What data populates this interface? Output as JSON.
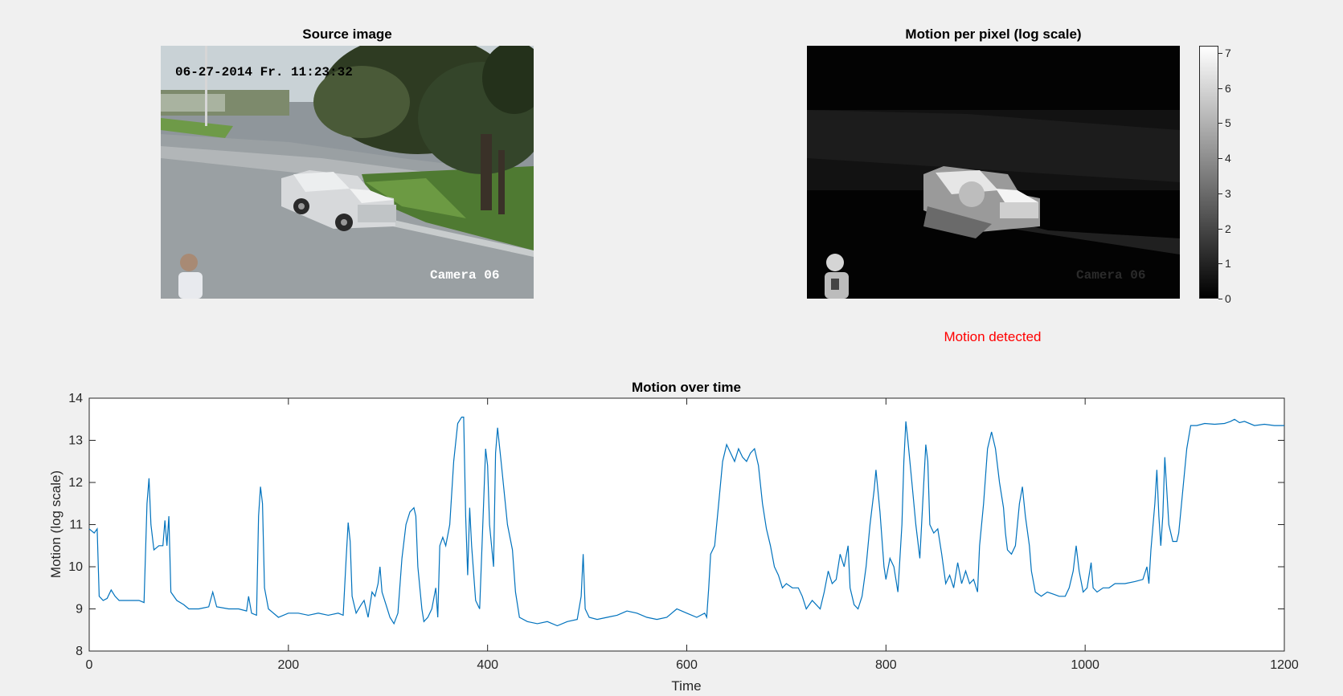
{
  "source_panel": {
    "title": "Source image",
    "timestamp": "06-27-2014 Fr. 11:23:32",
    "camera_label": "Camera 06"
  },
  "motion_panel": {
    "title": "Motion per pixel (log scale)",
    "camera_label": "Camera 06",
    "colorbar_ticks": [
      "0",
      "1",
      "2",
      "3",
      "4",
      "5",
      "6",
      "7"
    ]
  },
  "status_text": "Motion detected",
  "colors": {
    "line": "#0072bd",
    "status": "#ff0000",
    "figure_bg": "#f0f0f0"
  },
  "chart_data": {
    "type": "line",
    "title": "Motion over time",
    "xlabel": "Time",
    "ylabel": "Motion (log scale)",
    "xlim": [
      0,
      1200
    ],
    "ylim": [
      8,
      14
    ],
    "xticks": [
      0,
      200,
      400,
      600,
      800,
      1000,
      1200
    ],
    "yticks": [
      8,
      9,
      10,
      11,
      12,
      13,
      14
    ],
    "series": [
      {
        "name": "motion",
        "points": [
          [
            0,
            10.9
          ],
          [
            5,
            10.8
          ],
          [
            8,
            10.9
          ],
          [
            10,
            9.3
          ],
          [
            14,
            9.2
          ],
          [
            18,
            9.25
          ],
          [
            22,
            9.45
          ],
          [
            26,
            9.3
          ],
          [
            30,
            9.2
          ],
          [
            40,
            9.2
          ],
          [
            50,
            9.2
          ],
          [
            55,
            9.15
          ],
          [
            58,
            11.5
          ],
          [
            60,
            12.1
          ],
          [
            62,
            11.0
          ],
          [
            65,
            10.4
          ],
          [
            70,
            10.5
          ],
          [
            74,
            10.5
          ],
          [
            76,
            11.1
          ],
          [
            78,
            10.5
          ],
          [
            80,
            11.2
          ],
          [
            82,
            9.4
          ],
          [
            88,
            9.2
          ],
          [
            95,
            9.1
          ],
          [
            100,
            9.0
          ],
          [
            110,
            9.0
          ],
          [
            120,
            9.05
          ],
          [
            124,
            9.4
          ],
          [
            128,
            9.05
          ],
          [
            140,
            9.0
          ],
          [
            150,
            9.0
          ],
          [
            158,
            8.95
          ],
          [
            160,
            9.3
          ],
          [
            163,
            8.9
          ],
          [
            168,
            8.85
          ],
          [
            170,
            11.2
          ],
          [
            172,
            11.9
          ],
          [
            174,
            11.5
          ],
          [
            176,
            9.5
          ],
          [
            180,
            9.0
          ],
          [
            190,
            8.8
          ],
          [
            200,
            8.9
          ],
          [
            210,
            8.9
          ],
          [
            220,
            8.85
          ],
          [
            230,
            8.9
          ],
          [
            240,
            8.85
          ],
          [
            250,
            8.9
          ],
          [
            255,
            8.85
          ],
          [
            258,
            10.2
          ],
          [
            260,
            11.05
          ],
          [
            262,
            10.6
          ],
          [
            264,
            9.3
          ],
          [
            268,
            8.9
          ],
          [
            273,
            9.1
          ],
          [
            276,
            9.2
          ],
          [
            280,
            8.8
          ],
          [
            284,
            9.4
          ],
          [
            287,
            9.3
          ],
          [
            290,
            9.6
          ],
          [
            292,
            10.0
          ],
          [
            294,
            9.4
          ],
          [
            298,
            9.1
          ],
          [
            302,
            8.8
          ],
          [
            306,
            8.65
          ],
          [
            310,
            8.9
          ],
          [
            314,
            10.2
          ],
          [
            318,
            11.0
          ],
          [
            322,
            11.3
          ],
          [
            326,
            11.4
          ],
          [
            328,
            11.2
          ],
          [
            330,
            10.0
          ],
          [
            334,
            9.0
          ],
          [
            336,
            8.7
          ],
          [
            340,
            8.8
          ],
          [
            344,
            9.0
          ],
          [
            348,
            9.5
          ],
          [
            350,
            8.8
          ],
          [
            352,
            10.5
          ],
          [
            355,
            10.7
          ],
          [
            358,
            10.5
          ],
          [
            362,
            11.0
          ],
          [
            366,
            12.5
          ],
          [
            370,
            13.4
          ],
          [
            374,
            13.55
          ],
          [
            376,
            13.55
          ],
          [
            378,
            11.2
          ],
          [
            380,
            9.8
          ],
          [
            382,
            11.4
          ],
          [
            384,
            10.5
          ],
          [
            388,
            9.2
          ],
          [
            392,
            9.0
          ],
          [
            396,
            11.5
          ],
          [
            398,
            12.8
          ],
          [
            400,
            12.4
          ],
          [
            402,
            11.0
          ],
          [
            406,
            10.0
          ],
          [
            408,
            12.7
          ],
          [
            410,
            13.3
          ],
          [
            414,
            12.4
          ],
          [
            420,
            11.0
          ],
          [
            425,
            10.4
          ],
          [
            428,
            9.4
          ],
          [
            432,
            8.8
          ],
          [
            440,
            8.7
          ],
          [
            450,
            8.65
          ],
          [
            460,
            8.7
          ],
          [
            470,
            8.6
          ],
          [
            480,
            8.7
          ],
          [
            490,
            8.75
          ],
          [
            494,
            9.3
          ],
          [
            496,
            10.3
          ],
          [
            498,
            9.0
          ],
          [
            502,
            8.8
          ],
          [
            510,
            8.75
          ],
          [
            520,
            8.8
          ],
          [
            530,
            8.85
          ],
          [
            540,
            8.95
          ],
          [
            550,
            8.9
          ],
          [
            560,
            8.8
          ],
          [
            570,
            8.75
          ],
          [
            580,
            8.8
          ],
          [
            590,
            9.0
          ],
          [
            600,
            8.9
          ],
          [
            610,
            8.8
          ],
          [
            618,
            8.9
          ],
          [
            620,
            8.8
          ],
          [
            622,
            9.5
          ],
          [
            624,
            10.3
          ],
          [
            628,
            10.5
          ],
          [
            632,
            11.5
          ],
          [
            636,
            12.5
          ],
          [
            640,
            12.9
          ],
          [
            644,
            12.7
          ],
          [
            648,
            12.5
          ],
          [
            652,
            12.8
          ],
          [
            656,
            12.6
          ],
          [
            660,
            12.5
          ],
          [
            664,
            12.7
          ],
          [
            668,
            12.8
          ],
          [
            672,
            12.4
          ],
          [
            676,
            11.5
          ],
          [
            680,
            10.9
          ],
          [
            684,
            10.5
          ],
          [
            688,
            10.0
          ],
          [
            692,
            9.8
          ],
          [
            696,
            9.5
          ],
          [
            700,
            9.6
          ],
          [
            706,
            9.5
          ],
          [
            712,
            9.5
          ],
          [
            716,
            9.3
          ],
          [
            720,
            9.0
          ],
          [
            726,
            9.2
          ],
          [
            730,
            9.1
          ],
          [
            734,
            9.0
          ],
          [
            738,
            9.4
          ],
          [
            742,
            9.9
          ],
          [
            746,
            9.6
          ],
          [
            750,
            9.7
          ],
          [
            754,
            10.3
          ],
          [
            758,
            10.0
          ],
          [
            762,
            10.5
          ],
          [
            764,
            9.5
          ],
          [
            768,
            9.1
          ],
          [
            772,
            9.0
          ],
          [
            776,
            9.3
          ],
          [
            780,
            10.0
          ],
          [
            784,
            11.0
          ],
          [
            788,
            11.8
          ],
          [
            790,
            12.3
          ],
          [
            794,
            11.3
          ],
          [
            798,
            10.0
          ],
          [
            800,
            9.7
          ],
          [
            804,
            10.2
          ],
          [
            808,
            10.0
          ],
          [
            812,
            9.4
          ],
          [
            816,
            11.0
          ],
          [
            818,
            12.5
          ],
          [
            820,
            13.45
          ],
          [
            822,
            13.0
          ],
          [
            826,
            12.0
          ],
          [
            830,
            11.0
          ],
          [
            834,
            10.2
          ],
          [
            838,
            12.0
          ],
          [
            840,
            12.9
          ],
          [
            842,
            12.5
          ],
          [
            844,
            11.0
          ],
          [
            848,
            10.8
          ],
          [
            852,
            10.9
          ],
          [
            856,
            10.3
          ],
          [
            860,
            9.6
          ],
          [
            864,
            9.8
          ],
          [
            868,
            9.5
          ],
          [
            872,
            10.1
          ],
          [
            876,
            9.6
          ],
          [
            880,
            9.9
          ],
          [
            884,
            9.6
          ],
          [
            888,
            9.7
          ],
          [
            892,
            9.4
          ],
          [
            894,
            10.5
          ],
          [
            898,
            11.5
          ],
          [
            902,
            12.8
          ],
          [
            906,
            13.2
          ],
          [
            910,
            12.8
          ],
          [
            914,
            12.0
          ],
          [
            918,
            11.4
          ],
          [
            920,
            10.8
          ],
          [
            922,
            10.4
          ],
          [
            926,
            10.3
          ],
          [
            930,
            10.5
          ],
          [
            934,
            11.5
          ],
          [
            937,
            11.9
          ],
          [
            940,
            11.2
          ],
          [
            944,
            10.5
          ],
          [
            946,
            9.9
          ],
          [
            950,
            9.4
          ],
          [
            956,
            9.3
          ],
          [
            962,
            9.4
          ],
          [
            968,
            9.35
          ],
          [
            974,
            9.3
          ],
          [
            980,
            9.3
          ],
          [
            984,
            9.5
          ],
          [
            988,
            9.9
          ],
          [
            991,
            10.5
          ],
          [
            994,
            9.9
          ],
          [
            998,
            9.4
          ],
          [
            1002,
            9.5
          ],
          [
            1006,
            10.1
          ],
          [
            1008,
            9.5
          ],
          [
            1012,
            9.4
          ],
          [
            1018,
            9.5
          ],
          [
            1024,
            9.5
          ],
          [
            1030,
            9.6
          ],
          [
            1040,
            9.6
          ],
          [
            1050,
            9.65
          ],
          [
            1058,
            9.7
          ],
          [
            1062,
            10.0
          ],
          [
            1064,
            9.6
          ],
          [
            1066,
            10.4
          ],
          [
            1070,
            11.5
          ],
          [
            1072,
            12.3
          ],
          [
            1074,
            11.2
          ],
          [
            1076,
            10.5
          ],
          [
            1078,
            11.2
          ],
          [
            1080,
            12.6
          ],
          [
            1082,
            11.8
          ],
          [
            1084,
            11.0
          ],
          [
            1088,
            10.6
          ],
          [
            1092,
            10.6
          ],
          [
            1094,
            10.8
          ],
          [
            1098,
            11.8
          ],
          [
            1102,
            12.8
          ],
          [
            1106,
            13.35
          ],
          [
            1112,
            13.35
          ],
          [
            1120,
            13.4
          ],
          [
            1130,
            13.38
          ],
          [
            1140,
            13.4
          ],
          [
            1146,
            13.45
          ],
          [
            1150,
            13.5
          ],
          [
            1155,
            13.42
          ],
          [
            1160,
            13.45
          ],
          [
            1170,
            13.35
          ],
          [
            1180,
            13.38
          ],
          [
            1190,
            13.35
          ],
          [
            1200,
            13.35
          ]
        ]
      }
    ]
  }
}
